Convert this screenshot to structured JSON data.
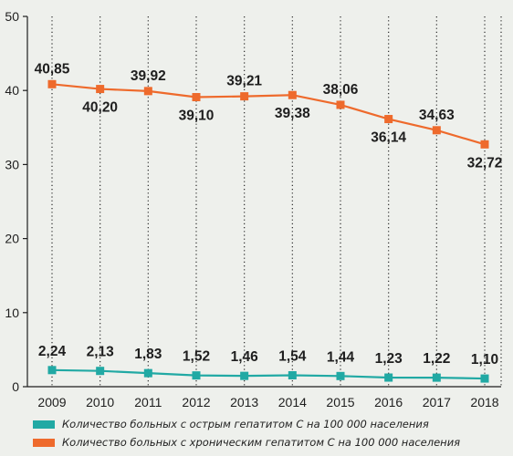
{
  "chart_data": {
    "type": "line",
    "x": [
      "2009",
      "2010",
      "2011",
      "2012",
      "2013",
      "2014",
      "2015",
      "2016",
      "2017",
      "2018"
    ],
    "ylim": [
      0,
      50
    ],
    "yticks": [
      "0",
      "10",
      "20",
      "30",
      "40",
      "50"
    ],
    "grid": "vertical dotted lines at each year",
    "series": [
      {
        "name": "Количество больных с хроническим гепатитом С на 100 000 населения",
        "color": "#ee6a2c",
        "values": [
          40.85,
          40.2,
          39.92,
          39.1,
          39.21,
          39.38,
          38.06,
          36.14,
          34.63,
          32.72
        ],
        "labels": [
          "40,85",
          "40,20",
          "39,92",
          "39,10",
          "39,21",
          "39,38",
          "38,06",
          "36,14",
          "34,63",
          "32,72"
        ]
      },
      {
        "name": "Количество больных с острым гепатитом С на 100 000 населения",
        "color": "#21a9a4",
        "values": [
          2.24,
          2.13,
          1.83,
          1.52,
          1.46,
          1.54,
          1.44,
          1.23,
          1.22,
          1.1
        ],
        "labels": [
          "2,24",
          "2,13",
          "1,83",
          "1,52",
          "1,46",
          "1,54",
          "1,44",
          "1,23",
          "1,22",
          "1,10"
        ]
      }
    ],
    "legend": [
      {
        "label": "Количество больных с острым гепатитом С на 100 000 населения",
        "color": "#21a9a4"
      },
      {
        "label": "Количество больных с хроническим гепатитом С на 100 000 населения",
        "color": "#ee6a2c"
      }
    ]
  }
}
